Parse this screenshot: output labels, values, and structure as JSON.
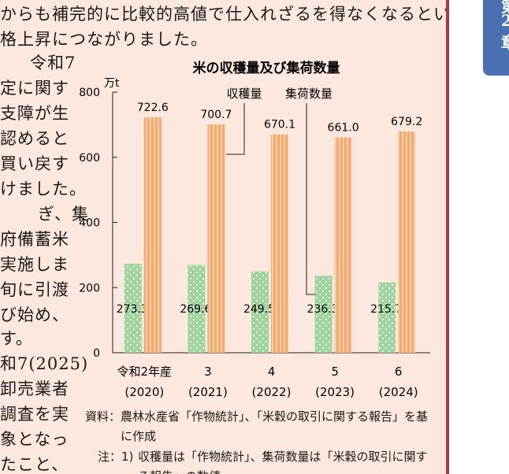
{
  "body_text": {
    "line1": "からも補完的に比較的高値で仕入れざるを得なくなるとい",
    "line2": "格上昇につながりました。",
    "left_column": [
      "令和7",
      "定に関す",
      "支障が生",
      "認めると",
      "買い戻す",
      "けました。",
      "ぎ、集",
      "府備蓄米",
      "実施しま",
      "旬に引渡",
      "び始め、",
      "す。",
      "和7(2025)",
      "卸売業者",
      "調査を実",
      "象となっ",
      "たこと、"
    ]
  },
  "side_tab": {
    "glyph1": "第",
    "glyph2": "2",
    "glyph3": "章"
  },
  "source_note": {
    "label": "資料：",
    "text1": "農林水産省「作物統計」、「米穀の取引に関する報告」を基",
    "text2": "に作成",
    "note_label": "注：1)",
    "note1": "収穫量は「作物統計」、集荷数量は「米穀の取引に関す",
    "note2": "る報告」の数値"
  },
  "chart_data": {
    "type": "bar",
    "title": "米の収穫量及び集荷数量",
    "ylabel": "万t",
    "ylim": [
      0,
      800
    ],
    "yticks": [
      0,
      200,
      400,
      600,
      800
    ],
    "categories": [
      {
        "line1": "令和2年産",
        "line2": "(2020)"
      },
      {
        "line1": "3",
        "line2": "(2021)"
      },
      {
        "line1": "4",
        "line2": "(2022)"
      },
      {
        "line1": "5",
        "line2": "(2023)"
      },
      {
        "line1": "6",
        "line2": "(2024)"
      }
    ],
    "series": [
      {
        "name": "収穫量",
        "color": "#9fd49f",
        "values": [
          273.3,
          269.6,
          249.5,
          236.3,
          215.7
        ],
        "labels": [
          "273.3",
          "269.6",
          "249.5",
          "236.3",
          "215.7"
        ]
      },
      {
        "name": "集荷数量",
        "color": "#f5a86a",
        "values": [
          722.6,
          700.7,
          670.1,
          661.0,
          679.2
        ],
        "labels": [
          "722.6",
          "700.7",
          "670.1",
          "661.0",
          "679.2"
        ]
      }
    ],
    "grid": false
  }
}
